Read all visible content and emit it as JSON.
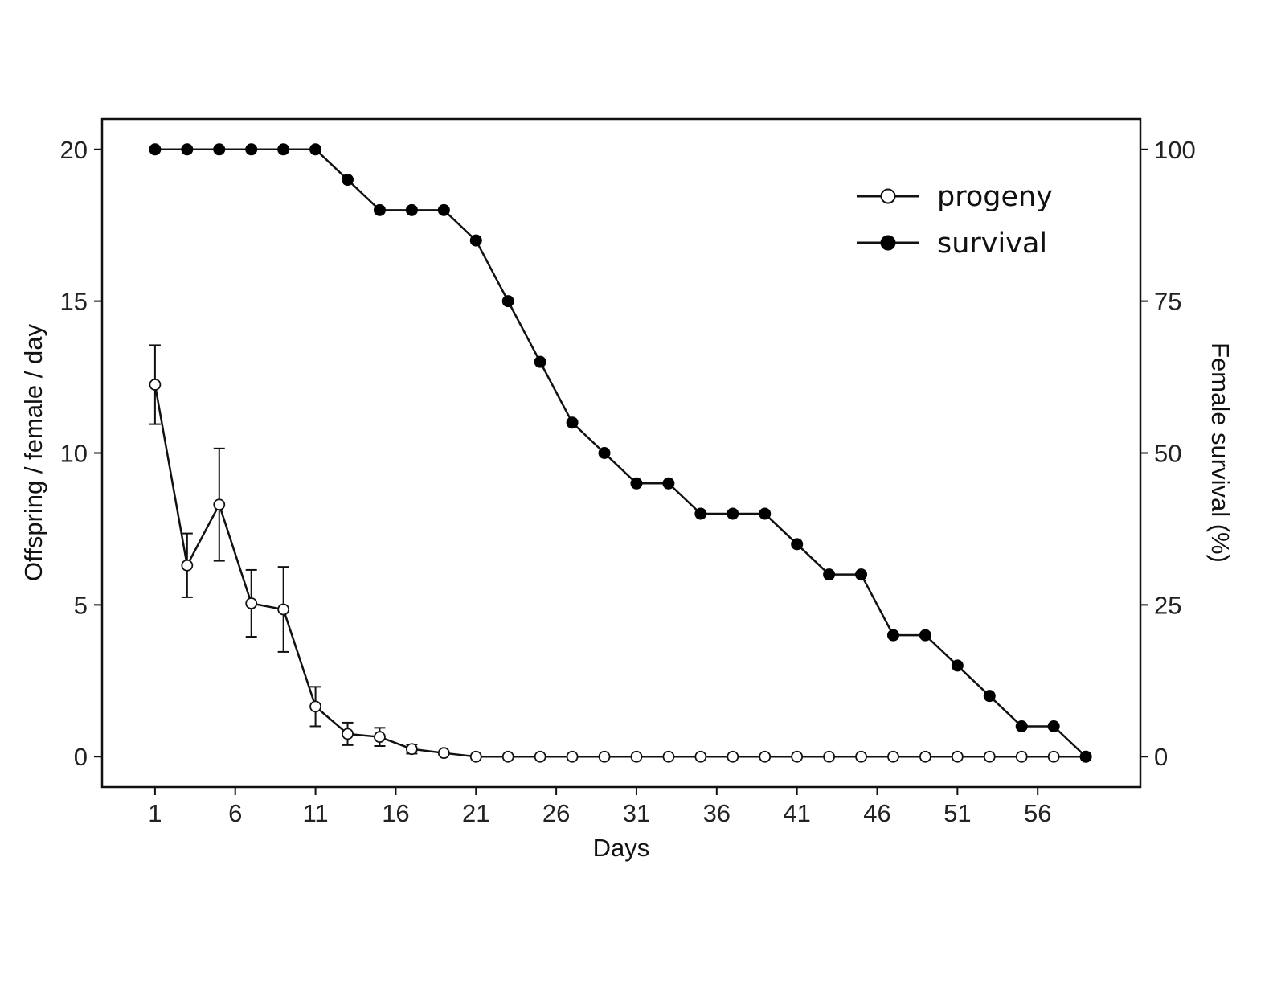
{
  "chart_data": {
    "type": "line",
    "xlabel": "Days",
    "ylabel_left": "Offspring / female / day",
    "ylabel_right": "Female survival (%)",
    "x_ticks": [
      1,
      6,
      11,
      16,
      21,
      26,
      31,
      36,
      41,
      46,
      51,
      56
    ],
    "y_left_ticks": [
      0,
      5,
      10,
      15,
      20
    ],
    "y_right_ticks": [
      0,
      25,
      50,
      75,
      100
    ],
    "xlim": [
      -2.3,
      62.4
    ],
    "ylim_left": [
      -1,
      21
    ],
    "ylim_right": [
      -5,
      105
    ],
    "grid": false,
    "legend_position": "top-right",
    "colors": {
      "line": "#111111",
      "progeny_fill": "#ffffff",
      "survival_fill": "#000000"
    },
    "series": [
      {
        "name": "progeny",
        "axis": "left",
        "marker": "open-circle",
        "x": [
          1,
          3,
          5,
          7,
          9,
          11,
          13,
          15,
          17,
          19,
          21,
          23,
          25,
          27,
          29,
          31,
          33,
          35,
          37,
          39,
          41,
          43,
          45,
          47,
          49,
          51,
          53,
          55,
          57,
          59
        ],
        "values": [
          12.25,
          6.3,
          8.3,
          5.05,
          4.85,
          1.65,
          0.75,
          0.65,
          0.25,
          0.12,
          0,
          0,
          0,
          0,
          0,
          0,
          0,
          0,
          0,
          0,
          0,
          0,
          0,
          0,
          0,
          0,
          0,
          0,
          0,
          0
        ],
        "error": [
          1.3,
          1.05,
          1.85,
          1.1,
          1.4,
          0.65,
          0.37,
          0.3,
          0.15,
          0,
          0,
          0,
          0,
          0,
          0,
          0,
          0,
          0,
          0,
          0,
          0,
          0,
          0,
          0,
          0,
          0,
          0,
          0,
          0,
          0
        ]
      },
      {
        "name": "survival",
        "axis": "right",
        "marker": "filled-circle",
        "x": [
          1,
          3,
          5,
          7,
          9,
          11,
          13,
          15,
          17,
          19,
          21,
          23,
          25,
          27,
          29,
          31,
          33,
          35,
          37,
          39,
          41,
          43,
          45,
          47,
          49,
          51,
          53,
          55,
          57,
          59
        ],
        "values": [
          100,
          100,
          100,
          100,
          100,
          100,
          95,
          90,
          90,
          90,
          85,
          75,
          65,
          55,
          50,
          45,
          45,
          40,
          40,
          40,
          35,
          30,
          30,
          20,
          20,
          15,
          10,
          5,
          5,
          0
        ]
      }
    ]
  }
}
